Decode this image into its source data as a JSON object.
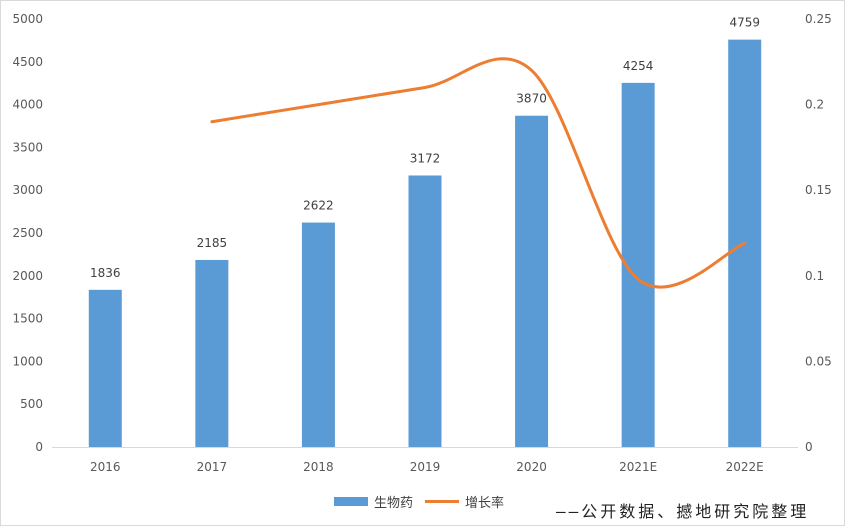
{
  "chart_data": {
    "type": "bar",
    "categories": [
      "2016",
      "2017",
      "2018",
      "2019",
      "2020",
      "2021E",
      "2022E"
    ],
    "series": [
      {
        "name": "生物药",
        "type": "bar",
        "axis": "left",
        "values": [
          1836,
          2185,
          2622,
          3172,
          3870,
          4254,
          4759
        ],
        "data_labels": [
          "1836",
          "2185",
          "2622",
          "3172",
          "3870",
          "4254",
          "4759"
        ],
        "color": "#5b9bd5"
      },
      {
        "name": "增长率",
        "type": "line",
        "axis": "right",
        "smooth": true,
        "values": [
          null,
          0.19,
          0.2,
          0.21,
          0.22,
          0.098,
          0.119
        ],
        "color": "#ed7d31"
      }
    ],
    "y_left": {
      "ylim": [
        0,
        5000
      ],
      "ticks": [
        0,
        500,
        1000,
        1500,
        2000,
        2500,
        3000,
        3500,
        4000,
        4500,
        5000
      ],
      "tick_labels": [
        "0",
        "500",
        "1000",
        "1500",
        "2000",
        "2500",
        "3000",
        "3500",
        "4000",
        "4500",
        "5000"
      ]
    },
    "y_right": {
      "ylim": [
        0,
        0.25
      ],
      "ticks": [
        0,
        0.05,
        0.1,
        0.15,
        0.2,
        0.25
      ],
      "tick_labels": [
        "0",
        "0.05",
        "0.1",
        "0.15",
        "0.2",
        "0.25"
      ]
    },
    "grid": false,
    "legend_position": "bottom"
  },
  "legend": {
    "bar_label": "生物药",
    "line_label": "增长率"
  },
  "source_note": "——公开数据、撼地研究院整理"
}
